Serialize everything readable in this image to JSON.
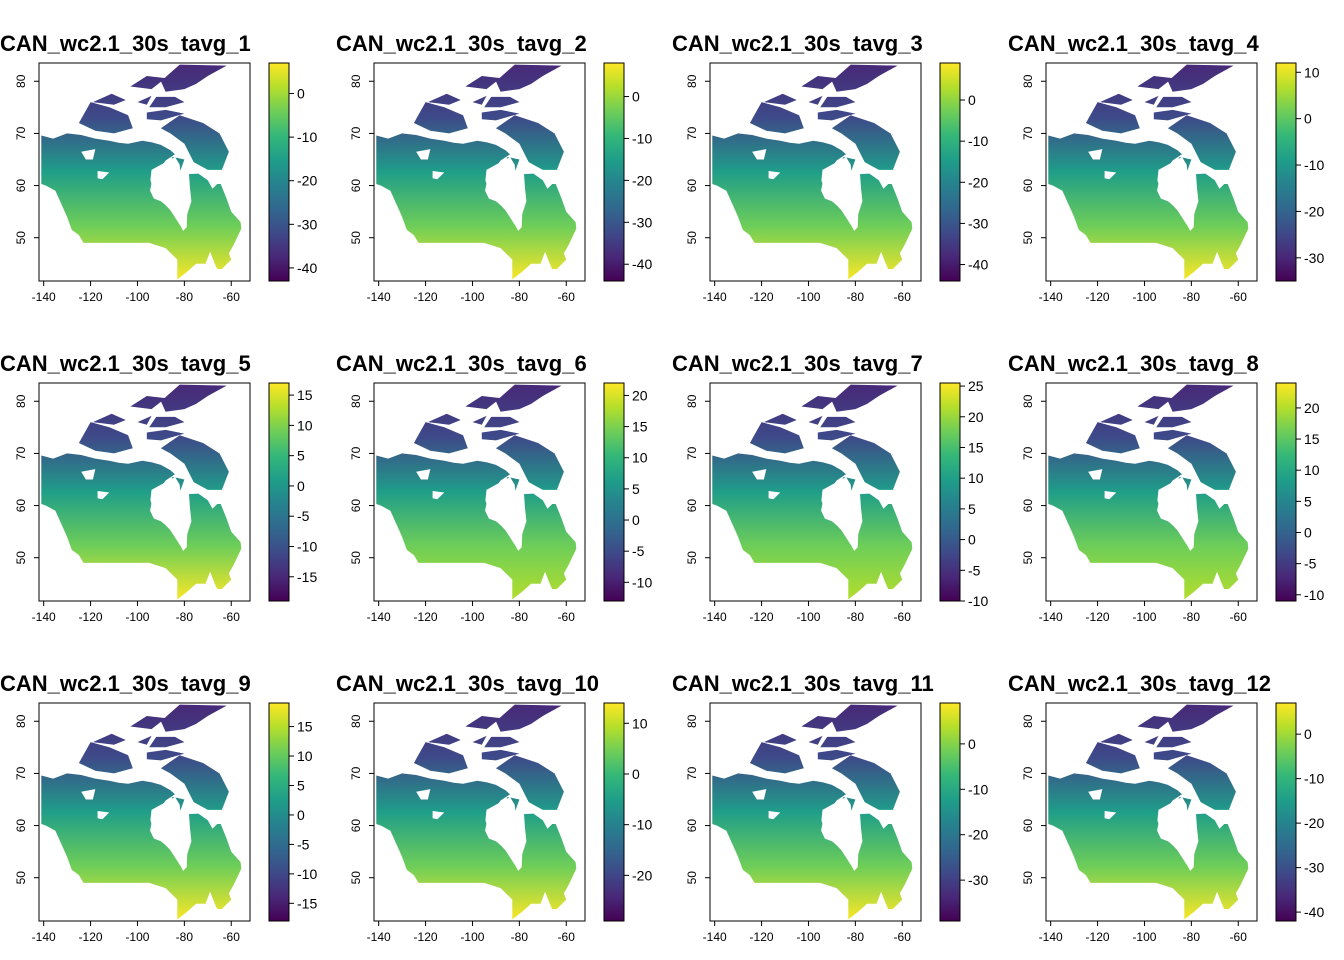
{
  "chart_data": [
    {
      "type": "heatmap",
      "title": "CAN_wc2.1_30s_tavg_1",
      "xticks": [
        -140,
        -120,
        -100,
        -80,
        -60
      ],
      "yticks": [
        50,
        60,
        70,
        80
      ],
      "xlim": [
        -142,
        -52
      ],
      "ylim": [
        41.7,
        83.5
      ],
      "legend": "right",
      "legend_ticks": [
        0,
        -10,
        -20,
        -30,
        -40
      ],
      "value_range": [
        -43,
        7
      ],
      "colormap": "viridis"
    },
    {
      "type": "heatmap",
      "title": "CAN_wc2.1_30s_tavg_2",
      "xticks": [
        -140,
        -120,
        -100,
        -80,
        -60
      ],
      "yticks": [
        50,
        60,
        70,
        80
      ],
      "xlim": [
        -142,
        -52
      ],
      "ylim": [
        41.7,
        83.5
      ],
      "legend": "right",
      "legend_ticks": [
        0,
        -10,
        -20,
        -30,
        -40
      ],
      "value_range": [
        -44,
        8
      ],
      "colormap": "viridis"
    },
    {
      "type": "heatmap",
      "title": "CAN_wc2.1_30s_tavg_3",
      "xticks": [
        -140,
        -120,
        -100,
        -80,
        -60
      ],
      "yticks": [
        50,
        60,
        70,
        80
      ],
      "xlim": [
        -142,
        -52
      ],
      "ylim": [
        41.7,
        83.5
      ],
      "legend": "right",
      "legend_ticks": [
        0,
        -10,
        -20,
        -30,
        -40
      ],
      "value_range": [
        -44,
        9
      ],
      "colormap": "viridis"
    },
    {
      "type": "heatmap",
      "title": "CAN_wc2.1_30s_tavg_4",
      "xticks": [
        -140,
        -120,
        -100,
        -80,
        -60
      ],
      "yticks": [
        50,
        60,
        70,
        80
      ],
      "xlim": [
        -142,
        -52
      ],
      "ylim": [
        41.7,
        83.5
      ],
      "legend": "right",
      "legend_ticks": [
        10,
        0,
        -10,
        -20,
        -30
      ],
      "value_range": [
        -35,
        12
      ],
      "colormap": "viridis"
    },
    {
      "type": "heatmap",
      "title": "CAN_wc2.1_30s_tavg_5",
      "xticks": [
        -140,
        -120,
        -100,
        -80,
        -60
      ],
      "yticks": [
        50,
        60,
        70,
        80
      ],
      "xlim": [
        -142,
        -52
      ],
      "ylim": [
        41.7,
        83.5
      ],
      "legend": "right",
      "legend_ticks": [
        15,
        10,
        5,
        0,
        -5,
        -10,
        -15
      ],
      "value_range": [
        -19,
        17
      ],
      "colormap": "viridis"
    },
    {
      "type": "heatmap",
      "title": "CAN_wc2.1_30s_tavg_6",
      "xticks": [
        -140,
        -120,
        -100,
        -80,
        -60
      ],
      "yticks": [
        50,
        60,
        70,
        80
      ],
      "xlim": [
        -142,
        -52
      ],
      "ylim": [
        41.7,
        83.5
      ],
      "legend": "right",
      "legend_ticks": [
        20,
        15,
        10,
        5,
        0,
        -5,
        -10
      ],
      "value_range": [
        -13,
        22
      ],
      "colormap": "viridis"
    },
    {
      "type": "heatmap",
      "title": "CAN_wc2.1_30s_tavg_7",
      "xticks": [
        -140,
        -120,
        -100,
        -80,
        -60
      ],
      "yticks": [
        50,
        60,
        70,
        80
      ],
      "xlim": [
        -142,
        -52
      ],
      "ylim": [
        41.7,
        83.5
      ],
      "legend": "right",
      "legend_ticks": [
        25,
        20,
        15,
        10,
        5,
        0,
        -5,
        -10
      ],
      "value_range": [
        -10,
        25.5
      ],
      "colormap": "viridis"
    },
    {
      "type": "heatmap",
      "title": "CAN_wc2.1_30s_tavg_8",
      "xticks": [
        -140,
        -120,
        -100,
        -80,
        -60
      ],
      "yticks": [
        50,
        60,
        70,
        80
      ],
      "xlim": [
        -142,
        -52
      ],
      "ylim": [
        41.7,
        83.5
      ],
      "legend": "right",
      "legend_ticks": [
        20,
        15,
        10,
        5,
        0,
        -5,
        -10
      ],
      "value_range": [
        -11,
        24
      ],
      "colormap": "viridis"
    },
    {
      "type": "heatmap",
      "title": "CAN_wc2.1_30s_tavg_9",
      "xticks": [
        -140,
        -120,
        -100,
        -80,
        -60
      ],
      "yticks": [
        50,
        60,
        70,
        80
      ],
      "xlim": [
        -142,
        -52
      ],
      "ylim": [
        41.7,
        83.5
      ],
      "legend": "right",
      "legend_ticks": [
        15,
        10,
        5,
        0,
        -5,
        -10,
        -15
      ],
      "value_range": [
        -18,
        19
      ],
      "colormap": "viridis"
    },
    {
      "type": "heatmap",
      "title": "CAN_wc2.1_30s_tavg_10",
      "xticks": [
        -140,
        -120,
        -100,
        -80,
        -60
      ],
      "yticks": [
        50,
        60,
        70,
        80
      ],
      "xlim": [
        -142,
        -52
      ],
      "ylim": [
        41.7,
        83.5
      ],
      "legend": "right",
      "legend_ticks": [
        10,
        0,
        -10,
        -20
      ],
      "value_range": [
        -29,
        14
      ],
      "colormap": "viridis"
    },
    {
      "type": "heatmap",
      "title": "CAN_wc2.1_30s_tavg_11",
      "xticks": [
        -140,
        -120,
        -100,
        -80,
        -60
      ],
      "yticks": [
        50,
        60,
        70,
        80
      ],
      "xlim": [
        -142,
        -52
      ],
      "ylim": [
        41.7,
        83.5
      ],
      "legend": "right",
      "legend_ticks": [
        0,
        -10,
        -20,
        -30
      ],
      "value_range": [
        -39,
        9
      ],
      "colormap": "viridis"
    },
    {
      "type": "heatmap",
      "title": "CAN_wc2.1_30s_tavg_12",
      "xticks": [
        -140,
        -120,
        -100,
        -80,
        -60
      ],
      "yticks": [
        50,
        60,
        70,
        80
      ],
      "xlim": [
        -142,
        -52
      ],
      "ylim": [
        41.7,
        83.5
      ],
      "legend": "right",
      "legend_ticks": [
        0,
        -10,
        -20,
        -30,
        -40
      ],
      "value_range": [
        -42,
        7
      ],
      "colormap": "viridis"
    }
  ]
}
